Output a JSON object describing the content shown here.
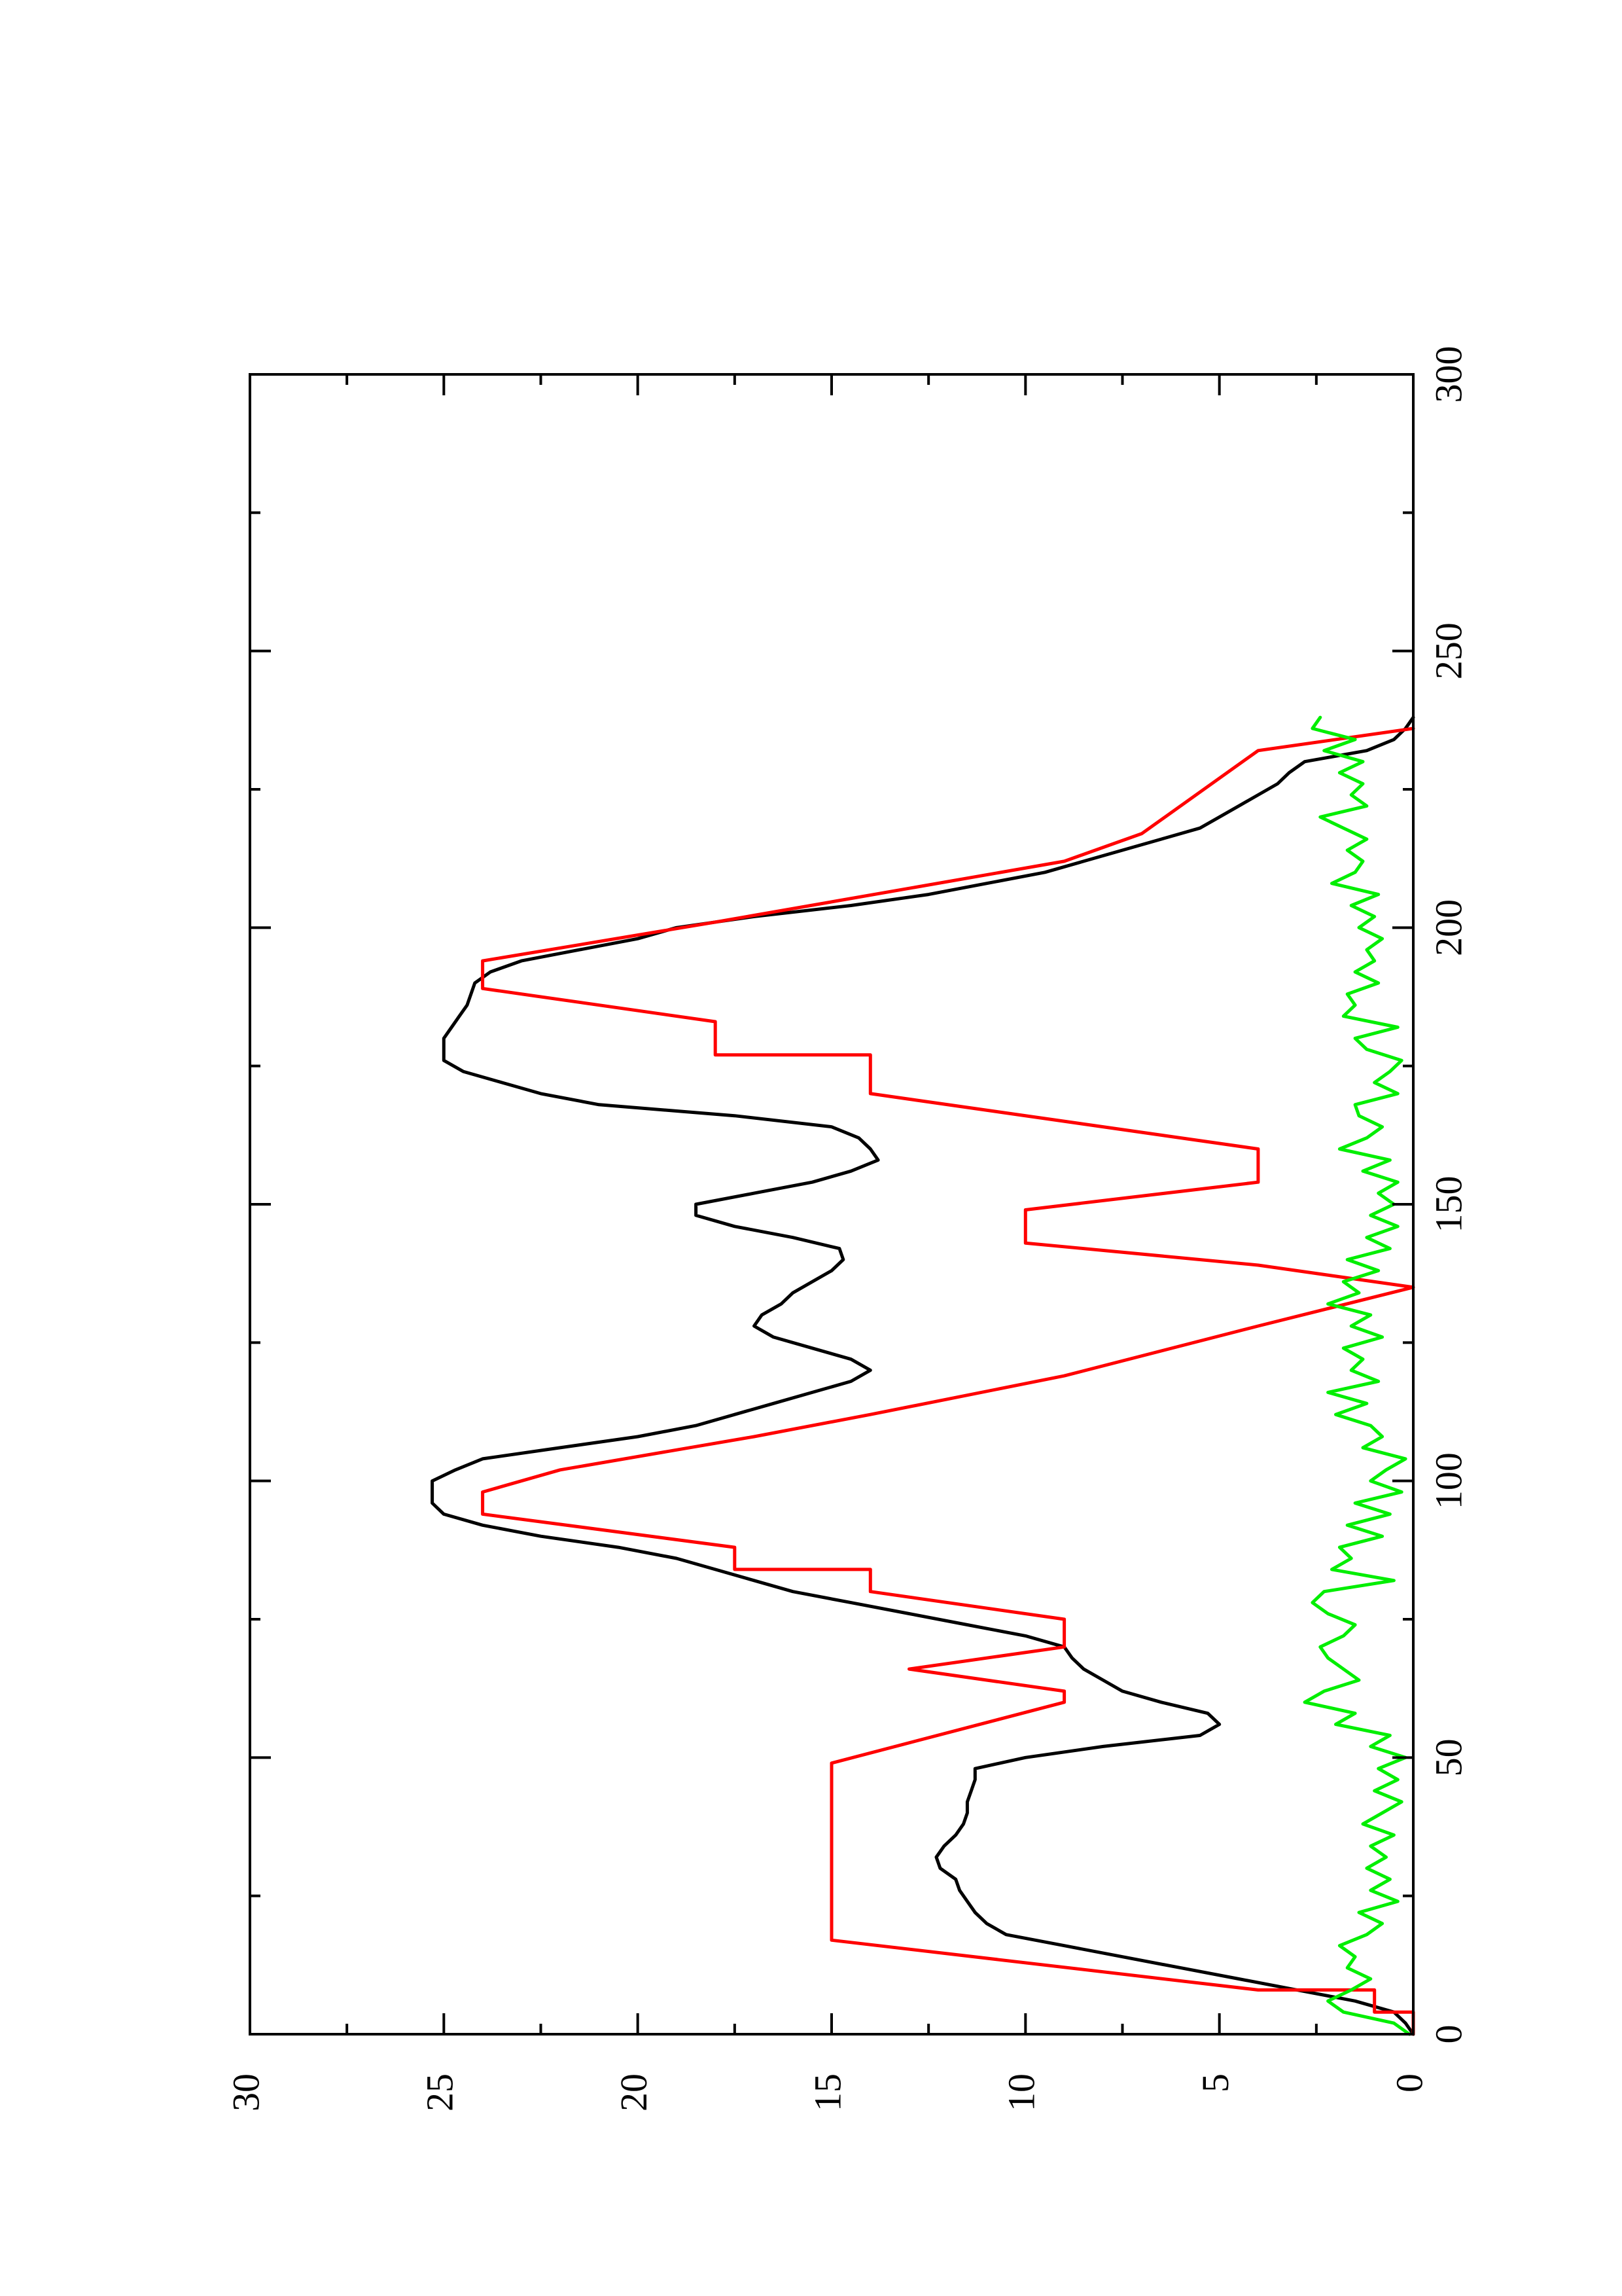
{
  "chart_data": {
    "type": "line",
    "title": "",
    "xlabel": "",
    "ylabel": "",
    "orientation": "rotated-90-ccw",
    "xlim": [
      0,
      300
    ],
    "ylim": [
      0,
      30
    ],
    "x_ticks": [
      0,
      50,
      100,
      150,
      200,
      250,
      300
    ],
    "y_ticks": [
      0,
      5,
      10,
      15,
      20,
      25,
      30
    ],
    "x_tick_labels": [
      "0",
      "50",
      "100",
      "150",
      "200",
      "250",
      "300"
    ],
    "y_tick_labels": [
      "0",
      "5",
      "10",
      "15",
      "20",
      "25",
      "30"
    ],
    "grid": false,
    "legend": "none",
    "series": [
      {
        "color": "#000000",
        "x": [
          0,
          2,
          4,
          6,
          8,
          10,
          12,
          14,
          16,
          18,
          20,
          22,
          24,
          26,
          28,
          30,
          32,
          34,
          36,
          38,
          40,
          42,
          44,
          46,
          48,
          50,
          52,
          54,
          56,
          58,
          60,
          62,
          64,
          66,
          68,
          70,
          72,
          74,
          76,
          78,
          80,
          82,
          84,
          86,
          88,
          90,
          92,
          94,
          96,
          98,
          100,
          102,
          104,
          106,
          108,
          110,
          112,
          114,
          116,
          118,
          120,
          122,
          124,
          126,
          128,
          130,
          132,
          134,
          136,
          138,
          140,
          142,
          144,
          146,
          148,
          150,
          152,
          154,
          156,
          158,
          160,
          162,
          164,
          166,
          168,
          170,
          172,
          174,
          176,
          178,
          180,
          182,
          184,
          186,
          188,
          190,
          192,
          194,
          196,
          198,
          200,
          202,
          204,
          206,
          208,
          210,
          212,
          214,
          216,
          218,
          220,
          222,
          224,
          226,
          228,
          230,
          232,
          234,
          236,
          238
        ],
        "values": [
          0,
          0.2,
          0.5,
          1.5,
          3.0,
          4.5,
          6.0,
          7.5,
          9.0,
          10.5,
          11.0,
          11.3,
          11.5,
          11.7,
          11.8,
          12.2,
          12.3,
          12.1,
          11.8,
          11.6,
          11.5,
          11.5,
          11.4,
          11.3,
          11.3,
          10.0,
          8.0,
          5.5,
          5.0,
          5.3,
          6.5,
          7.5,
          8.0,
          8.5,
          8.8,
          9.0,
          10.0,
          11.5,
          13.0,
          14.5,
          16.0,
          17.0,
          18.0,
          19.0,
          20.5,
          22.5,
          24.0,
          25.0,
          25.3,
          25.3,
          25.3,
          24.7,
          24.0,
          22.0,
          20.0,
          18.5,
          17.5,
          16.5,
          15.5,
          14.5,
          14.0,
          14.5,
          15.5,
          16.5,
          17.0,
          16.8,
          16.3,
          16.0,
          15.5,
          15.0,
          14.7,
          14.8,
          16.0,
          17.5,
          18.5,
          18.5,
          17.0,
          15.5,
          14.5,
          13.8,
          14.0,
          14.3,
          15.0,
          17.5,
          21.0,
          22.5,
          23.5,
          24.5,
          25.0,
          25.0,
          25.0,
          24.8,
          24.6,
          24.4,
          24.3,
          24.2,
          23.8,
          23.0,
          21.5,
          20.0,
          19.0,
          17.0,
          14.5,
          12.5,
          11.0,
          9.5,
          8.5,
          7.5,
          6.5,
          5.5,
          5.0,
          4.5,
          4.0,
          3.5,
          3.2,
          2.8,
          1.2,
          0.5,
          0.2,
          0
        ]
      },
      {
        "color": "#ff0000",
        "x": [
          0,
          4,
          4,
          8,
          8,
          17,
          49,
          60,
          60,
          62,
          62,
          66,
          70,
          75,
          75,
          80,
          80,
          84,
          84,
          88,
          88,
          94,
          98,
          98,
          102,
          102,
          108,
          108,
          112,
          112,
          119,
          119,
          128,
          128,
          135,
          139,
          139,
          143,
          143,
          149,
          154,
          160,
          160,
          170,
          170,
          177,
          177,
          183,
          183,
          189,
          194,
          201,
          201,
          212,
          212,
          217,
          217,
          232,
          232,
          236
        ],
        "values": [
          0,
          0,
          1,
          1,
          4,
          15,
          15,
          9,
          9,
          9,
          9,
          13,
          9,
          9,
          9,
          14,
          14,
          14,
          17.5,
          17.5,
          17.5,
          24,
          24,
          24,
          22,
          22,
          17,
          17,
          14,
          14,
          9,
          9,
          4,
          4,
          0,
          4,
          4,
          10,
          10,
          10,
          4,
          4,
          4,
          14,
          14,
          14,
          18,
          18,
          18,
          24,
          24,
          18,
          18,
          9,
          9,
          7,
          7,
          4,
          4,
          0
        ]
      },
      {
        "color": "#00ee00",
        "x": [
          0,
          2,
          4,
          6,
          8,
          10,
          12,
          14,
          16,
          18,
          20,
          22,
          24,
          26,
          28,
          30,
          32,
          34,
          36,
          38,
          40,
          42,
          44,
          46,
          48,
          50,
          52,
          54,
          56,
          58,
          60,
          62,
          64,
          66,
          68,
          70,
          72,
          74,
          76,
          78,
          80,
          82,
          84,
          86,
          88,
          90,
          92,
          94,
          96,
          98,
          100,
          102,
          104,
          106,
          108,
          110,
          112,
          114,
          116,
          118,
          120,
          122,
          124,
          126,
          128,
          130,
          132,
          134,
          136,
          138,
          140,
          142,
          144,
          146,
          148,
          150,
          152,
          154,
          156,
          158,
          160,
          162,
          164,
          166,
          168,
          170,
          172,
          174,
          176,
          178,
          180,
          182,
          184,
          186,
          188,
          190,
          192,
          194,
          196,
          198,
          200,
          202,
          204,
          206,
          208,
          210,
          212,
          214,
          216,
          218,
          220,
          222,
          224,
          226,
          228,
          230,
          232,
          234,
          236,
          238
        ],
        "values": [
          0.1,
          0.5,
          1.8,
          2.2,
          1.6,
          1.1,
          1.7,
          1.5,
          1.9,
          1.2,
          0.8,
          1.4,
          0.4,
          1.1,
          0.6,
          1.2,
          0.7,
          1.1,
          0.5,
          1.3,
          0.8,
          0.3,
          1.0,
          0.4,
          0.9,
          0.2,
          1.1,
          0.6,
          2.0,
          1.5,
          2.8,
          2.3,
          1.4,
          1.8,
          2.2,
          2.4,
          1.8,
          1.5,
          2.2,
          2.6,
          2.3,
          0.5,
          2.1,
          1.6,
          1.9,
          0.8,
          1.7,
          0.6,
          1.5,
          0.3,
          1.1,
          0.7,
          0.2,
          1.3,
          0.8,
          1.1,
          2.0,
          1.2,
          2.2,
          0.9,
          1.6,
          1.3,
          1.8,
          0.8,
          1.6,
          1.1,
          2.2,
          1.4,
          1.8,
          0.9,
          1.7,
          0.6,
          1.2,
          0.4,
          1.1,
          0.5,
          0.9,
          0.4,
          1.3,
          0.6,
          1.9,
          1.2,
          0.8,
          1.4,
          1.5,
          0.4,
          1.0,
          0.6,
          0.3,
          1.2,
          1.5,
          0.4,
          1.8,
          1.5,
          1.7,
          0.9,
          1.5,
          1.0,
          1.2,
          0.8,
          1.4,
          1.0,
          1.6,
          0.9,
          2.1,
          1.5,
          1.3,
          1.7,
          1.2,
          1.8,
          2.4,
          1.2,
          1.6,
          1.3,
          1.9,
          1.3,
          2.3,
          1.5,
          2.6,
          2.4
        ]
      }
    ]
  }
}
